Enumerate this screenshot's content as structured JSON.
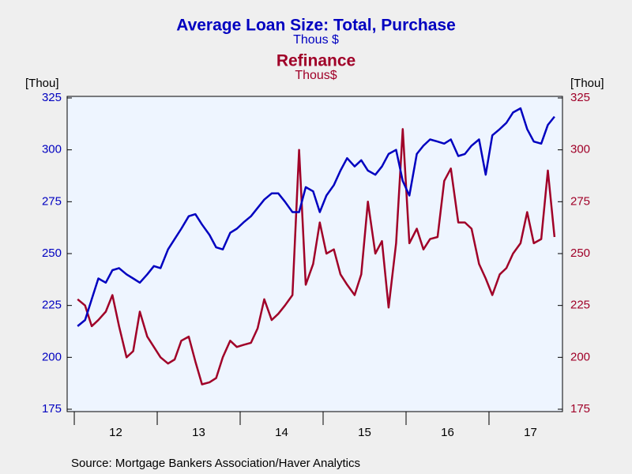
{
  "chart_data": {
    "type": "line",
    "title": "Average Loan Size: Total, Purchase",
    "subtitle": "Thous $",
    "title_2": "Refinance",
    "subtitle_2": "Thous$",
    "y_label": "[Thou]",
    "y2_label": "[Thou]",
    "source": "Source:  Mortgage Bankers Association/Haver Analytics",
    "x": [
      2012.04,
      2012.13,
      2012.21,
      2012.29,
      2012.38,
      2012.46,
      2012.54,
      2012.63,
      2012.71,
      2012.79,
      2012.88,
      2012.96,
      2013.04,
      2013.13,
      2013.21,
      2013.29,
      2013.38,
      2013.46,
      2013.54,
      2013.63,
      2013.71,
      2013.79,
      2013.88,
      2013.96,
      2014.04,
      2014.13,
      2014.21,
      2014.29,
      2014.38,
      2014.46,
      2014.54,
      2014.63,
      2014.71,
      2014.79,
      2014.88,
      2014.96,
      2015.04,
      2015.13,
      2015.21,
      2015.29,
      2015.38,
      2015.46,
      2015.54,
      2015.63,
      2015.71,
      2015.79,
      2015.88,
      2015.96,
      2016.04,
      2016.13,
      2016.21,
      2016.29,
      2016.38,
      2016.46,
      2016.54,
      2016.63,
      2016.71,
      2016.79,
      2016.88,
      2016.96,
      2017.04,
      2017.13,
      2017.21,
      2017.29,
      2017.38,
      2017.46,
      2017.54,
      2017.63,
      2017.71,
      2017.79
    ],
    "series": [
      {
        "color": "#0000c0",
        "axis": "y",
        "values": [
          215,
          218,
          228,
          238,
          236,
          242,
          243,
          240,
          238,
          236,
          240,
          244,
          243,
          252,
          257,
          262,
          268,
          269,
          264,
          259,
          253,
          252,
          260,
          262,
          265,
          268,
          272,
          276,
          279,
          279,
          275,
          270,
          270,
          282,
          280,
          270,
          278,
          283,
          290,
          296,
          292,
          295,
          290,
          288,
          292,
          298,
          300,
          285,
          278,
          298,
          302,
          305,
          304,
          303,
          305,
          297,
          298,
          302,
          305,
          288,
          307,
          310,
          313,
          318,
          320,
          310,
          304,
          303,
          312,
          316
        ]
      },
      {
        "color": "#a00028",
        "axis": "y2",
        "values": [
          228,
          225,
          215,
          218,
          222,
          230,
          215,
          200,
          203,
          222,
          210,
          205,
          200,
          197,
          199,
          208,
          210,
          198,
          187,
          188,
          190,
          200,
          208,
          205,
          206,
          207,
          214,
          228,
          218,
          221,
          225,
          230,
          300,
          235,
          245,
          265,
          250,
          252,
          240,
          235,
          230,
          240,
          275,
          250,
          256,
          224,
          255,
          310,
          255,
          262,
          252,
          257,
          258,
          285,
          291,
          265,
          265,
          262,
          245,
          238,
          230,
          240,
          243,
          250,
          255,
          270,
          255,
          257,
          290,
          258
        ]
      }
    ],
    "xlim": [
      2011.914,
      2017.886
    ],
    "xticks": [
      {
        "value": 2012.5,
        "label": "12"
      },
      {
        "value": 2013.5,
        "label": "13"
      },
      {
        "value": 2014.5,
        "label": "14"
      },
      {
        "value": 2015.5,
        "label": "15"
      },
      {
        "value": 2016.5,
        "label": "16"
      },
      {
        "value": 2017.5,
        "label": "17"
      }
    ],
    "ylim": [
      175,
      325
    ],
    "yticks": [
      175,
      200,
      225,
      250,
      275,
      300,
      325
    ],
    "y2lim": [
      175,
      325
    ],
    "y2ticks": [
      175,
      200,
      225,
      250,
      275,
      300,
      325
    ],
    "y_color": "#0000c0",
    "y2_color": "#a00028"
  }
}
